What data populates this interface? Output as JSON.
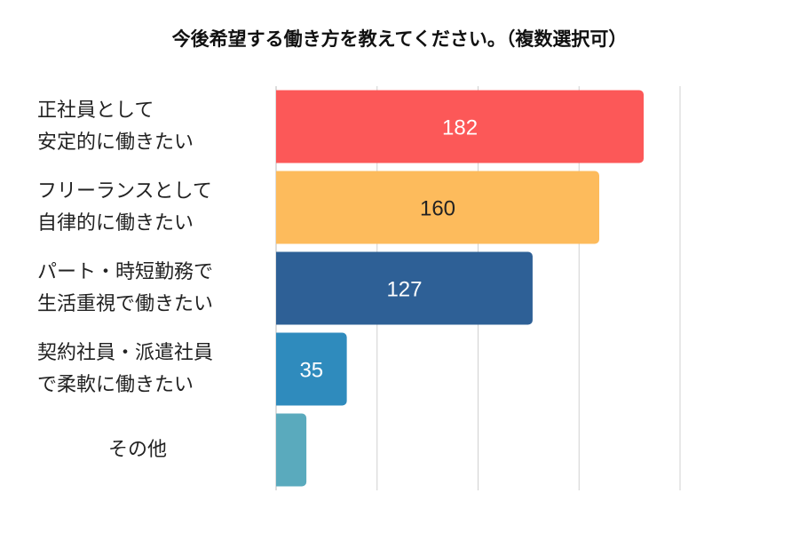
{
  "chart_data": {
    "type": "bar",
    "orientation": "horizontal",
    "title": "今後希望する働き方を教えてください。（複数選択可）",
    "categories": [
      "正社員として\n安定的に働きたい",
      "フリーランスとして\n自律的に働きたい",
      "パート・時短勤務で\n生活重視で働きたい",
      "契約社員・派遣社員\nで柔軟に働きたい",
      "その他"
    ],
    "values": [
      182,
      160,
      127,
      35,
      15
    ],
    "data_labels": [
      "182",
      "160",
      "127",
      "35",
      ""
    ],
    "colors": [
      "#fc5858",
      "#fdbb5c",
      "#2e6096",
      "#2f8bbd",
      "#5aaabd"
    ],
    "label_colors": [
      "#ffffff",
      "#222222",
      "#ffffff",
      "#ffffff",
      "#ffffff"
    ],
    "xlim": [
      0,
      200
    ],
    "grid_step": 50,
    "grid": true,
    "legend": "none"
  }
}
